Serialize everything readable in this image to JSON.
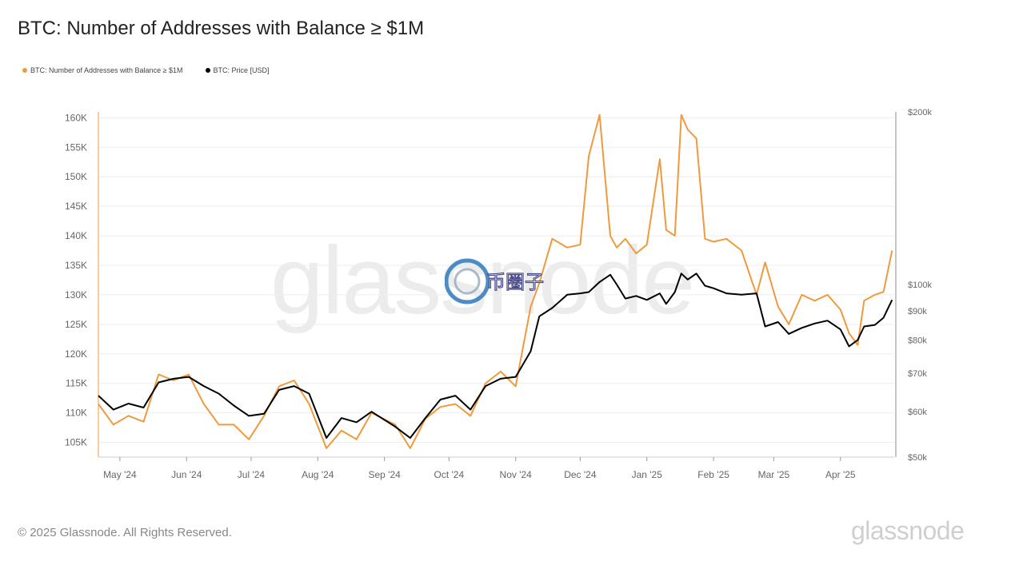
{
  "title": "BTC: Number of Addresses with Balance ≥ $1M",
  "legend": [
    {
      "label": "BTC: Number of Addresses with Balance ≥ $1M",
      "color": "#f09a3e"
    },
    {
      "label": "BTC: Price [USD]",
      "color": "#000000"
    }
  ],
  "footer": "© 2025 Glassnode. All Rights Reserved.",
  "brand": "glassnode",
  "watermark": "glassnode",
  "stamp_text": "币圈子",
  "colors": {
    "addresses": "#f09a3e",
    "price": "#000000",
    "grid": "#eeeeee",
    "axis_text": "#666666"
  },
  "chart_data": {
    "type": "line",
    "title": "BTC: Number of Addresses with Balance ≥ $1M",
    "x_ticks": [
      "May '24",
      "Jun '24",
      "Jul '24",
      "Aug '24",
      "Sep '24",
      "Oct '24",
      "Nov '24",
      "Dec '24",
      "Jan '25",
      "Feb '25",
      "Mar '25",
      "Apr '25"
    ],
    "y_left": {
      "ticks": [
        "105K",
        "110K",
        "115K",
        "120K",
        "125K",
        "130K",
        "135K",
        "140K",
        "145K",
        "150K",
        "155K",
        "160K"
      ],
      "range": [
        102500,
        161000
      ]
    },
    "y_right": {
      "ticks": [
        "$50k",
        "$60k",
        "$70k",
        "$80k",
        "$90k",
        "$100k",
        "$200k"
      ],
      "scale": "log"
    },
    "series": [
      {
        "name": "BTC: Number of Addresses with Balance ≥ $1M",
        "axis": "left",
        "x": [
          "2024-04-21",
          "2024-04-28",
          "2024-05-05",
          "2024-05-12",
          "2024-05-19",
          "2024-05-26",
          "2024-06-02",
          "2024-06-09",
          "2024-06-16",
          "2024-06-23",
          "2024-06-30",
          "2024-07-07",
          "2024-07-14",
          "2024-07-21",
          "2024-07-28",
          "2024-08-05",
          "2024-08-12",
          "2024-08-19",
          "2024-08-26",
          "2024-09-06",
          "2024-09-13",
          "2024-09-20",
          "2024-09-27",
          "2024-10-04",
          "2024-10-11",
          "2024-10-18",
          "2024-10-25",
          "2024-11-01",
          "2024-11-08",
          "2024-11-12",
          "2024-11-18",
          "2024-11-25",
          "2024-12-01",
          "2024-12-05",
          "2024-12-10",
          "2024-12-15",
          "2024-12-18",
          "2024-12-22",
          "2024-12-27",
          "2025-01-01",
          "2025-01-07",
          "2025-01-10",
          "2025-01-14",
          "2025-01-17",
          "2025-01-20",
          "2025-01-24",
          "2025-01-28",
          "2025-02-01",
          "2025-02-07",
          "2025-02-14",
          "2025-02-21",
          "2025-02-25",
          "2025-03-03",
          "2025-03-08",
          "2025-03-14",
          "2025-03-20",
          "2025-03-26",
          "2025-04-01",
          "2025-04-05",
          "2025-04-09",
          "2025-04-12",
          "2025-04-17",
          "2025-04-21",
          "2025-04-25"
        ],
        "values": [
          111500,
          108000,
          109500,
          108500,
          116500,
          115500,
          116500,
          111500,
          108000,
          108000,
          105500,
          109500,
          114500,
          115500,
          111500,
          104000,
          107000,
          105500,
          110000,
          108000,
          104000,
          109000,
          111000,
          111500,
          109500,
          115000,
          117000,
          114500,
          128000,
          132000,
          139500,
          138000,
          138500,
          153500,
          160500,
          140000,
          138000,
          139500,
          137000,
          138500,
          153000,
          141000,
          140000,
          160500,
          158000,
          156500,
          139500,
          139000,
          139500,
          137500,
          130000,
          135500,
          128000,
          125000,
          130000,
          129000,
          130000,
          127500,
          123500,
          121500,
          129000,
          130000,
          130500,
          137500
        ]
      },
      {
        "name": "BTC: Price [USD]",
        "axis": "right",
        "x": [
          "2024-04-21",
          "2024-04-28",
          "2024-05-05",
          "2024-05-12",
          "2024-05-19",
          "2024-05-26",
          "2024-06-02",
          "2024-06-09",
          "2024-06-16",
          "2024-06-23",
          "2024-06-30",
          "2024-07-07",
          "2024-07-14",
          "2024-07-21",
          "2024-07-28",
          "2024-08-05",
          "2024-08-12",
          "2024-08-19",
          "2024-08-26",
          "2024-09-06",
          "2024-09-13",
          "2024-09-20",
          "2024-09-27",
          "2024-10-04",
          "2024-10-11",
          "2024-10-18",
          "2024-10-25",
          "2024-11-01",
          "2024-11-08",
          "2024-11-12",
          "2024-11-18",
          "2024-11-25",
          "2024-12-01",
          "2024-12-05",
          "2024-12-10",
          "2024-12-15",
          "2024-12-18",
          "2024-12-22",
          "2024-12-27",
          "2025-01-01",
          "2025-01-07",
          "2025-01-10",
          "2025-01-14",
          "2025-01-17",
          "2025-01-20",
          "2025-01-24",
          "2025-01-28",
          "2025-02-01",
          "2025-02-07",
          "2025-02-14",
          "2025-02-21",
          "2025-02-25",
          "2025-03-03",
          "2025-03-08",
          "2025-03-14",
          "2025-03-20",
          "2025-03-26",
          "2025-04-01",
          "2025-04-05",
          "2025-04-09",
          "2025-04-12",
          "2025-04-17",
          "2025-04-21",
          "2025-04-25"
        ],
        "values": [
          64000,
          60500,
          62000,
          61000,
          67500,
          68500,
          69000,
          66500,
          64500,
          61500,
          59000,
          59500,
          65500,
          66500,
          64500,
          54000,
          58500,
          57500,
          60000,
          56500,
          54000,
          58500,
          63000,
          64000,
          60500,
          66500,
          68500,
          69000,
          76500,
          88000,
          91000,
          96000,
          96500,
          97000,
          101000,
          104000,
          100000,
          94500,
          95500,
          94000,
          96500,
          92500,
          97000,
          104500,
          102000,
          104500,
          99500,
          98500,
          96500,
          96000,
          96500,
          84500,
          86000,
          82000,
          84000,
          85500,
          86500,
          83500,
          78000,
          80000,
          84500,
          85000,
          87500,
          94000
        ]
      }
    ]
  }
}
